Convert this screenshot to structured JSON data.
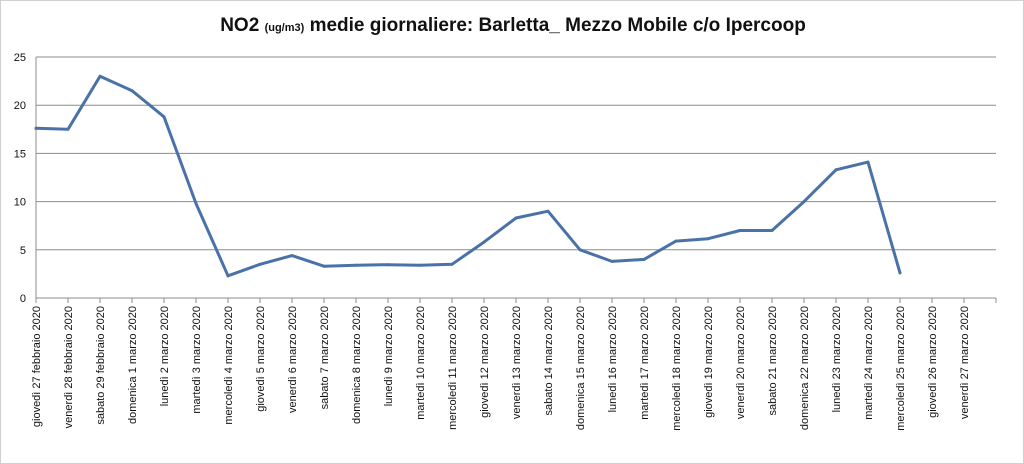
{
  "chart_data": {
    "type": "line",
    "title": {
      "main": "NO2",
      "unit": "(ug/m3)",
      "rest": "medie giornaliere: Barletta_ Mezzo Mobile c/o Ipercoop"
    },
    "ylim": [
      0,
      25
    ],
    "yticks": [
      0,
      5,
      10,
      15,
      20,
      25
    ],
    "grid": true,
    "legend": "none",
    "line_color": "#4a72a8",
    "categories": [
      "giovedì 27 febbraio 2020",
      "venerdì 28 febbraio 2020",
      "sabato 29 febbraio 2020",
      "domenica 1 marzo 2020",
      "lunedì 2 marzo 2020",
      "martedì 3 marzo 2020",
      "mercoledì 4 marzo 2020",
      "giovedì 5 marzo 2020",
      "venerdì 6 marzo 2020",
      "sabato 7 marzo 2020",
      "domenica 8 marzo 2020",
      "lunedì 9 marzo 2020",
      "martedì 10 marzo 2020",
      "mercoledì 11 marzo 2020",
      "giovedì 12 marzo 2020",
      "venerdì 13 marzo 2020",
      "sabato 14 marzo 2020",
      "domenica 15 marzo 2020",
      "lunedì 16 marzo 2020",
      "martedì 17 marzo 2020",
      "mercoledì 18 marzo 2020",
      "giovedì 19 marzo 2020",
      "venerdì 20 marzo 2020",
      "sabato 21 marzo 2020",
      "domenica 22 marzo 2020",
      "lunedì 23 marzo 2020",
      "martedì 24 marzo 2020",
      "mercoledì 25 marzo 2020",
      "giovedì 26 marzo 2020",
      "venerdì 27 marzo 2020"
    ],
    "values": [
      17.6,
      17.5,
      23.0,
      21.5,
      18.8,
      9.8,
      2.3,
      3.5,
      4.4,
      3.3,
      3.4,
      3.45,
      3.4,
      3.5,
      5.8,
      8.3,
      9.0,
      5.0,
      3.8,
      4.0,
      5.9,
      6.15,
      7.0,
      7.0,
      10.0,
      13.3,
      14.1,
      2.6,
      null,
      null
    ]
  }
}
